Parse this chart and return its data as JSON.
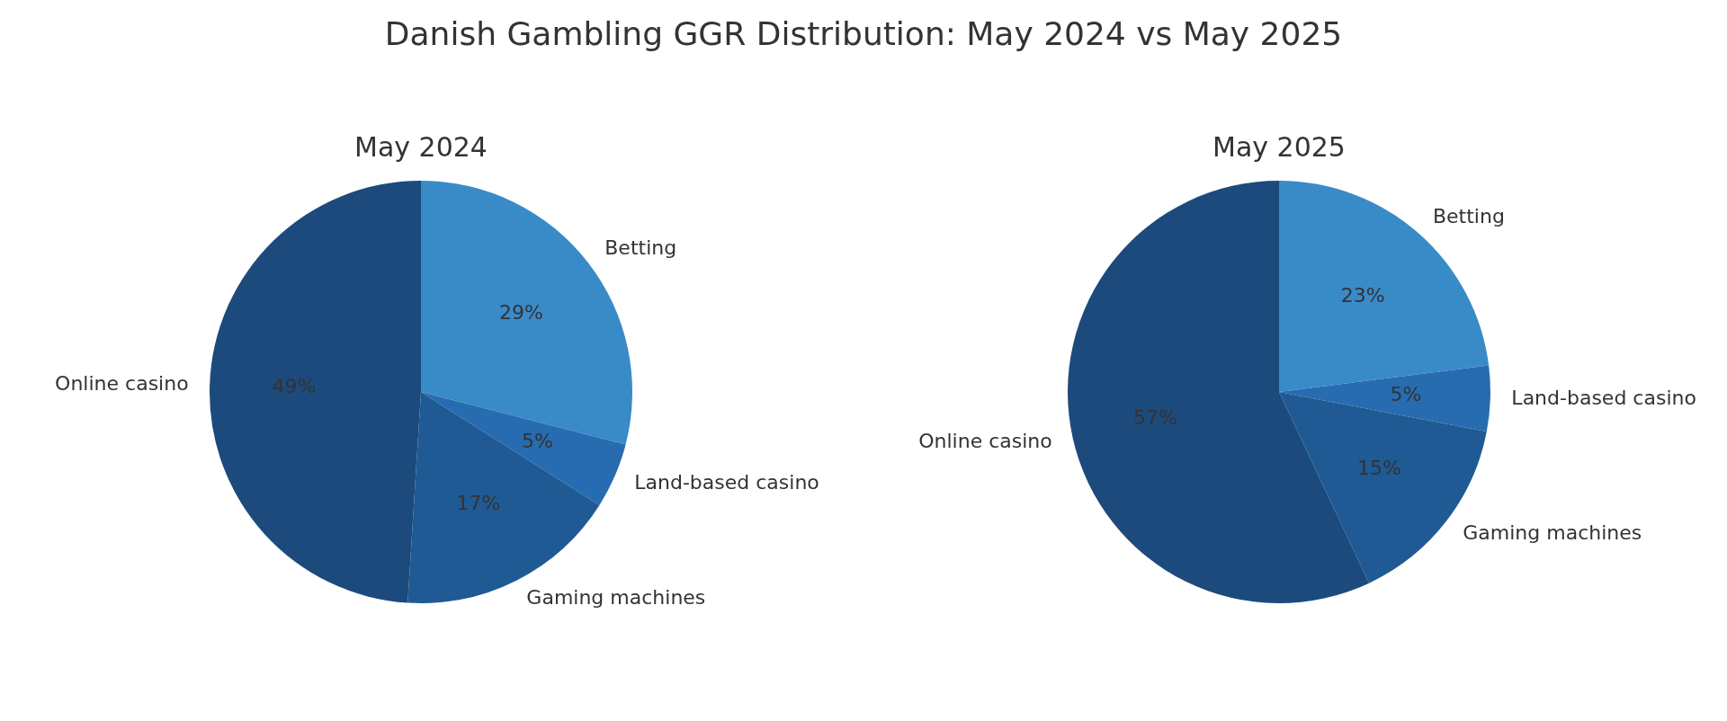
{
  "chart_data": [
    {
      "type": "pie",
      "title": "Danish Gambling GGR Distribution: May 2024 vs May 2025",
      "subtitle": "May 2024",
      "categories": [
        "Betting",
        "Land-based casino",
        "Gaming machines",
        "Online casino"
      ],
      "values": [
        29,
        5,
        17,
        49
      ],
      "value_labels": [
        "29%",
        "5%",
        "17%",
        "49%"
      ],
      "colors": [
        "#398bc8",
        "#276cb0",
        "#1f5a94",
        "#1c4a7c"
      ]
    },
    {
      "type": "pie",
      "title": "May 2025",
      "categories": [
        "Betting",
        "Land-based casino",
        "Gaming machines",
        "Online casino"
      ],
      "values": [
        23,
        5,
        15,
        57
      ],
      "value_labels": [
        "23%",
        "5%",
        "15%",
        "57%"
      ],
      "colors": [
        "#398bc8",
        "#276cb0",
        "#1f5a94",
        "#1c4a7c"
      ]
    }
  ]
}
